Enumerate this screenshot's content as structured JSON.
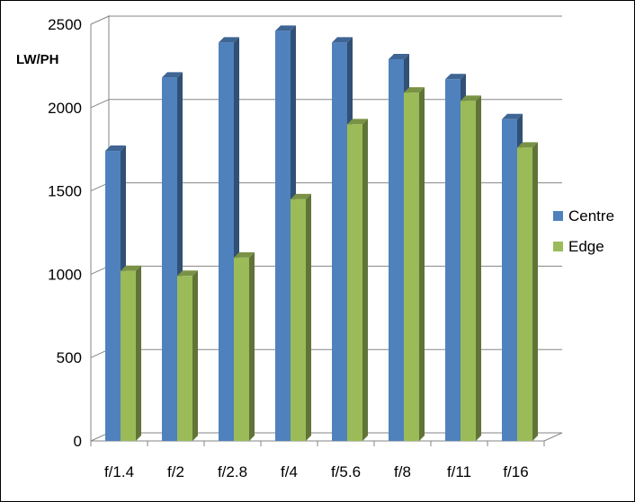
{
  "chart_data": {
    "type": "bar",
    "title": "",
    "xlabel": "",
    "ylabel": "LW/PH",
    "ylim": [
      0,
      2500
    ],
    "yticks": [
      0,
      500,
      1000,
      1500,
      2000,
      2500
    ],
    "grid": true,
    "legend_position": "right",
    "categories": [
      "f/1.4",
      "f/2",
      "f/2.8",
      "f/4",
      "f/5.6",
      "f/8",
      "f/11",
      "f/16"
    ],
    "series": [
      {
        "name": "Centre",
        "color": "#4F81BD",
        "values": [
          1740,
          2180,
          2390,
          2460,
          2390,
          2290,
          2170,
          1930
        ]
      },
      {
        "name": "Edge",
        "color": "#9BBB59",
        "values": [
          1020,
          990,
          1100,
          1450,
          1900,
          2090,
          2040,
          1760
        ]
      }
    ]
  }
}
